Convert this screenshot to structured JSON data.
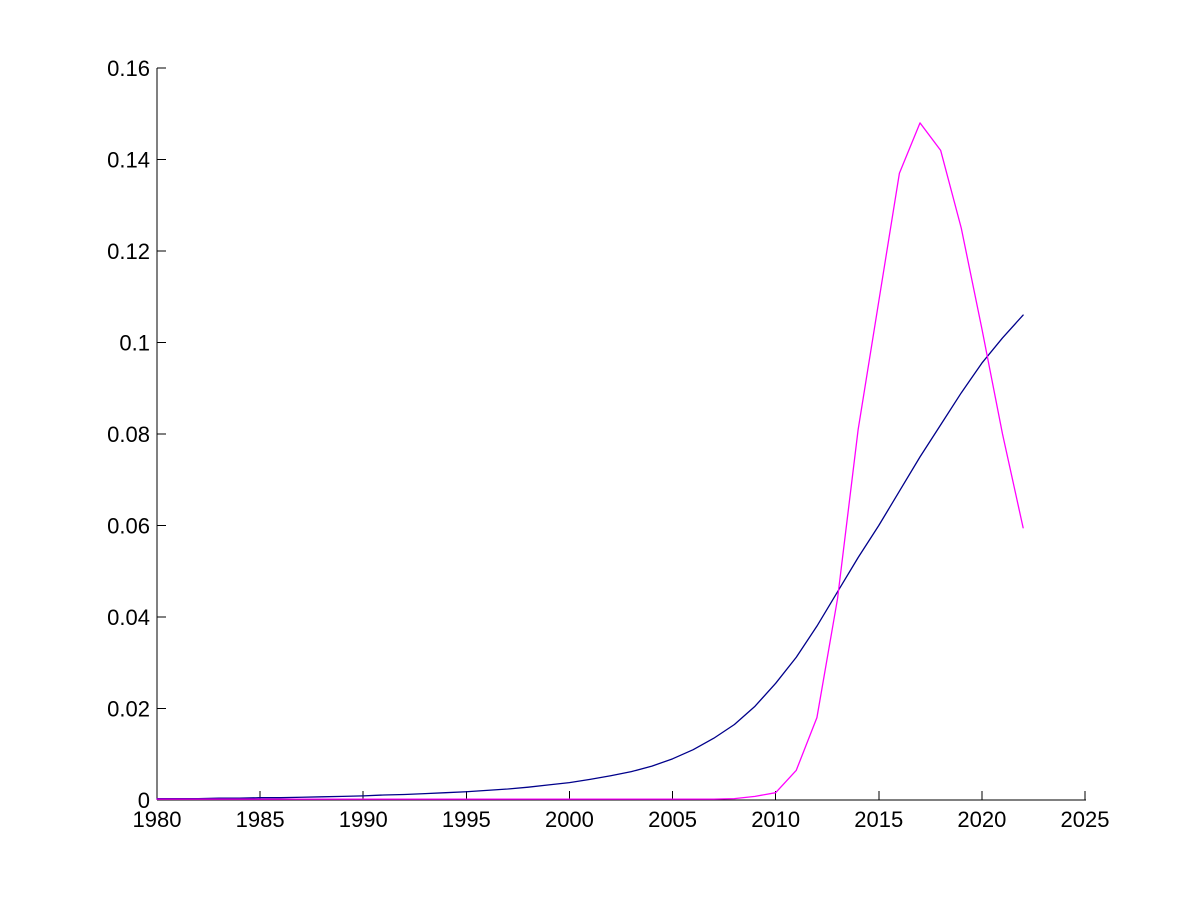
{
  "figure": {
    "background": "#ffffff"
  },
  "chart_data": {
    "type": "line",
    "title": "",
    "xlabel": "",
    "ylabel": "",
    "grid": false,
    "legend": "none",
    "axis_color": "#000000",
    "xlim": [
      1980,
      2025
    ],
    "ylim": [
      0,
      0.16
    ],
    "x_ticks": [
      1980,
      1985,
      1990,
      1995,
      2000,
      2005,
      2010,
      2015,
      2020,
      2025
    ],
    "x_tick_labels": [
      "1980",
      "1985",
      "1990",
      "1995",
      "2000",
      "2005",
      "2010",
      "2015",
      "2020",
      "2025"
    ],
    "y_ticks": [
      0,
      0.02,
      0.04,
      0.06,
      0.08,
      0.1,
      0.12,
      0.14,
      0.16
    ],
    "y_tick_labels": [
      "0",
      "0.02",
      "0.04",
      "0.06",
      "0.08",
      "0.1",
      "0.12",
      "0.14",
      "0.16"
    ],
    "x": [
      1980,
      1981,
      1982,
      1983,
      1984,
      1985,
      1986,
      1987,
      1988,
      1989,
      1990,
      1991,
      1992,
      1993,
      1994,
      1995,
      1996,
      1997,
      1998,
      1999,
      2000,
      2001,
      2002,
      2003,
      2004,
      2005,
      2006,
      2007,
      2008,
      2009,
      2010,
      2011,
      2012,
      2013,
      2014,
      2015,
      2016,
      2017,
      2018,
      2019,
      2020,
      2021,
      2022
    ],
    "series": [
      {
        "name": "blue",
        "color": "#00008B",
        "values": [
          0.0003,
          0.0003,
          0.0003,
          0.0004,
          0.0004,
          0.0005,
          0.0005,
          0.0006,
          0.0007,
          0.0008,
          0.0009,
          0.0011,
          0.0012,
          0.0014,
          0.0016,
          0.0018,
          0.0021,
          0.0024,
          0.0028,
          0.0033,
          0.0038,
          0.0045,
          0.0053,
          0.0062,
          0.0074,
          0.009,
          0.011,
          0.0135,
          0.0165,
          0.0205,
          0.0255,
          0.0312,
          0.038,
          0.0455,
          0.053,
          0.06,
          0.0675,
          0.075,
          0.082,
          0.089,
          0.0955,
          0.101,
          0.106
        ]
      },
      {
        "name": "magenta",
        "color": "#FF00FF",
        "values": [
          0.0002,
          0.0002,
          0.0002,
          0.0002,
          0.0002,
          0.0002,
          0.0002,
          0.0002,
          0.0002,
          0.0002,
          0.0002,
          0.0002,
          0.0002,
          0.0002,
          0.0002,
          0.0002,
          0.0002,
          0.0002,
          0.0002,
          0.0002,
          0.0002,
          0.0002,
          0.0002,
          0.0002,
          0.0002,
          0.0002,
          0.0002,
          0.0002,
          0.0003,
          0.0008,
          0.0016,
          0.0065,
          0.018,
          0.044,
          0.081,
          0.109,
          0.137,
          0.148,
          0.142,
          0.125,
          0.103,
          0.08,
          0.0595
        ]
      }
    ]
  }
}
